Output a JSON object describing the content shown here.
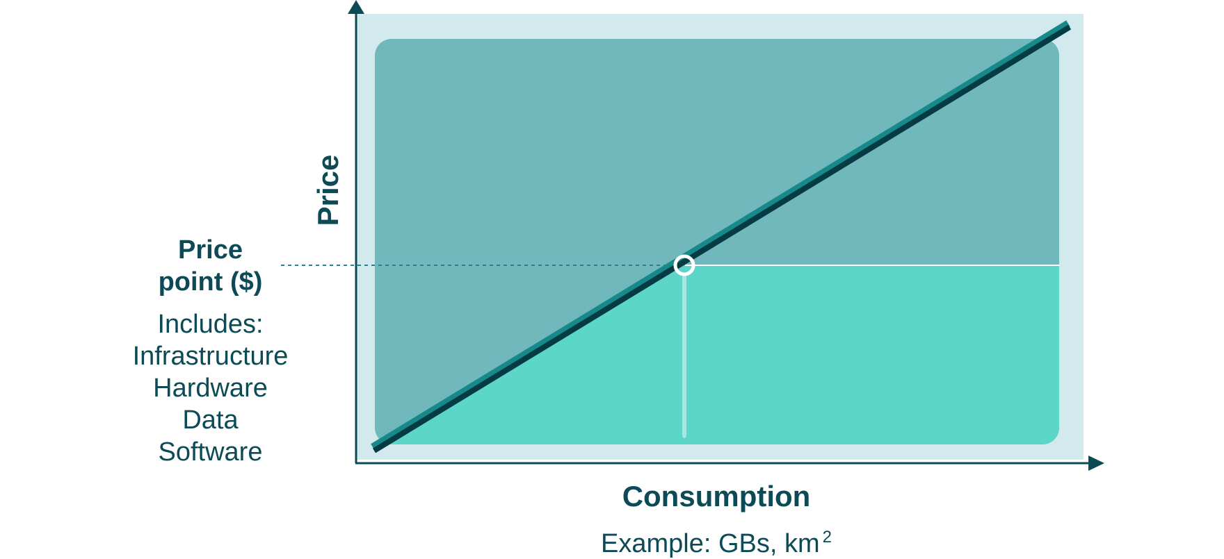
{
  "diagram": {
    "y_axis_label": "Price",
    "x_axis_label": "Consumption",
    "x_axis_sublabel_prefix": "Example: GBs, km",
    "x_axis_sublabel_superscript": "2",
    "price_point_label": [
      "Price",
      "point ($)"
    ],
    "includes_label": "Includes:",
    "includes_items": [
      "Infrastructure",
      "Hardware",
      "Data",
      "Software"
    ],
    "colors": {
      "outer_background": "#d2eaee",
      "upper_region": "#70b8bb",
      "lower_region": "#5bd6c8",
      "axis": "#0c4a56",
      "line_dark": "#073b44",
      "line_accent": "#18898a",
      "text": "#0c4a56"
    }
  }
}
